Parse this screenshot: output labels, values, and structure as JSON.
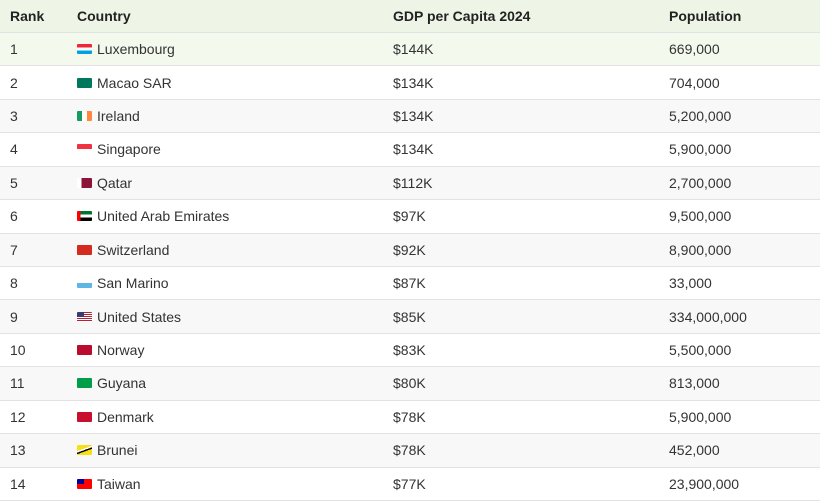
{
  "table": {
    "header": [
      "Rank",
      "Country",
      "GDP per Capita 2024",
      "Population"
    ],
    "rows": [
      [
        "1",
        "Luxembourg",
        "$144K",
        "669,000"
      ],
      [
        "2",
        "Macao SAR",
        "$134K",
        "704,000"
      ],
      [
        "3",
        "Ireland",
        "$134K",
        "5,200,000"
      ],
      [
        "4",
        "Singapore",
        "$134K",
        "5,900,000"
      ],
      [
        "5",
        "Qatar",
        "$112K",
        "2,700,000"
      ],
      [
        "6",
        "United Arab Emirates",
        "$97K",
        "9,500,000"
      ],
      [
        "7",
        "Switzerland",
        "$92K",
        "8,900,000"
      ],
      [
        "8",
        "San Marino",
        "$87K",
        "33,000"
      ],
      [
        "9",
        "United States",
        "$85K",
        "334,000,000"
      ],
      [
        "10",
        "Norway",
        "$83K",
        "5,500,000"
      ],
      [
        "11",
        "Guyana",
        "$80K",
        "813,000"
      ],
      [
        "12",
        "Denmark",
        "$78K",
        "5,900,000"
      ],
      [
        "13",
        "Brunei",
        "$78K",
        "452,000"
      ],
      [
        "14",
        "Taiwan",
        "$77K",
        "23,900,000"
      ]
    ]
  }
}
